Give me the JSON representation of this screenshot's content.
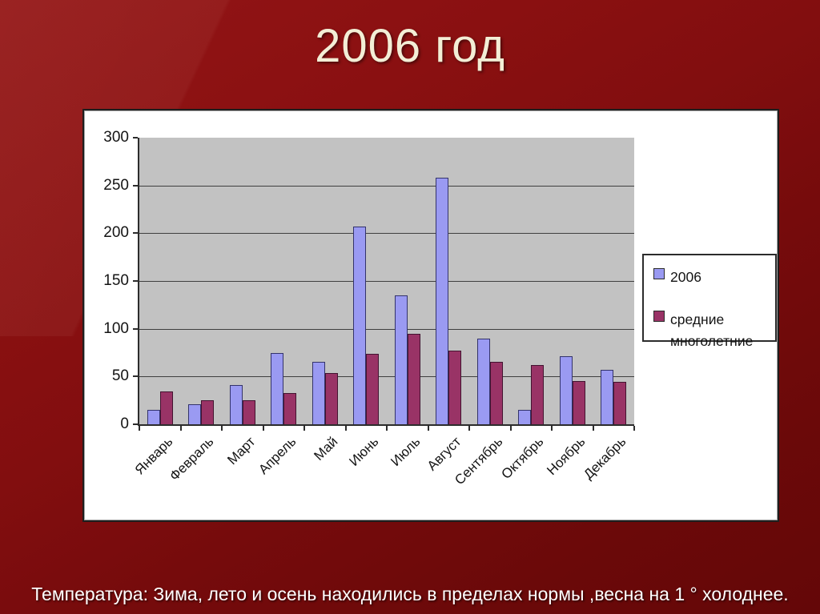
{
  "slide": {
    "title": "2006 год",
    "caption": "Температура: Зима, лето и осень находились в пределах нормы ,весна на 1 ° холоднее."
  },
  "chart_data": {
    "type": "bar",
    "title": "",
    "xlabel": "",
    "ylabel": "",
    "categories": [
      "Январь",
      "Февраль",
      "Март",
      "Апрель",
      "Май",
      "Июнь",
      "Июль",
      "Август",
      "Сентябрь",
      "Октябрь",
      "Ноябрь",
      "Декабрь"
    ],
    "series": [
      {
        "name": "2006",
        "color": "#9a9af2",
        "border_color": "#33336b",
        "values": [
          15,
          21,
          41,
          75,
          65,
          207,
          135,
          258,
          90,
          15,
          71,
          57
        ]
      },
      {
        "name": "средние многолетние",
        "color": "#993366",
        "border_color": "#431330",
        "values": [
          34,
          25,
          25,
          33,
          54,
          74,
          95,
          77,
          65,
          62,
          45,
          44
        ]
      }
    ],
    "ylim": [
      0,
      300
    ],
    "ytick_step": 50,
    "yticks": [
      "0",
      "50",
      "100",
      "150",
      "200",
      "250",
      "300"
    ],
    "grid": true,
    "legend_position": "right",
    "plot_background": "#c2c2c2",
    "chart_background": "#ffffff"
  }
}
